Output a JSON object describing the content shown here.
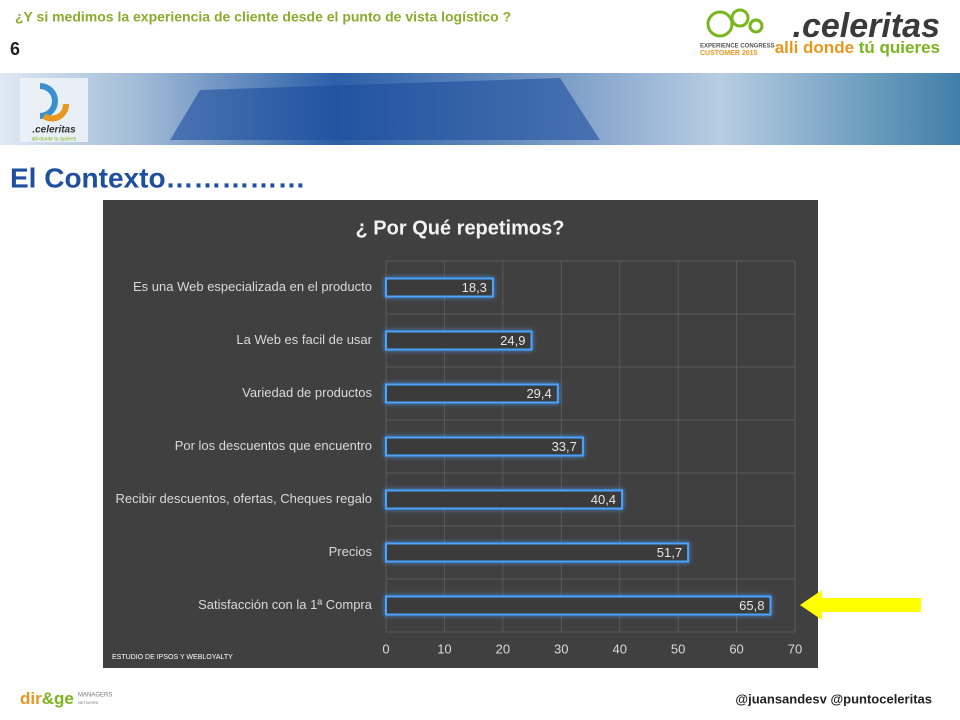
{
  "header": {
    "question": "¿Y si medimos la experiencia de cliente desde el punto de vista logístico ?",
    "slide_number": "6"
  },
  "logos": {
    "congress_top": "EXPERIENCE CONGRESS",
    "congress_bottom": "CUSTOMER 2015",
    "brand": ".celeritas",
    "tagline_a": "alli donde ",
    "tagline_b": "tú quieres",
    "banner_brand": ".celeritas",
    "banner_tagline": "alli donde tu quieres",
    "footer_brand_a": "dir",
    "footer_brand_b": "&ge",
    "footer_brand_c": "MANAGERS",
    "footer_brand_d": "NETWORK"
  },
  "section_title": "El Contexto……………",
  "footer": {
    "handles": "@juansandesv  @puntoceleritas"
  },
  "chart_data": {
    "type": "bar",
    "orientation": "horizontal",
    "title": "¿ Por Qué repetimos?",
    "source": "ESTUDIO DE IPSOS Y WEBLOYALTY",
    "categories": [
      "Es una Web especializada en el producto",
      "La Web es facil de usar",
      "Variedad de productos",
      "Por los descuentos que encuentro",
      "Recibir descuentos, ofertas, Cheques regalo",
      "Precios",
      "Satisfacción con la 1ª Compra"
    ],
    "values": [
      18.3,
      24.9,
      29.4,
      33.7,
      40.4,
      51.7,
      65.8
    ],
    "value_labels": [
      "18,3",
      "24,9",
      "29,4",
      "33,7",
      "40,4",
      "51,7",
      "65,8"
    ],
    "color": "#4aa3ff",
    "xlim": [
      0,
      70
    ],
    "xticks": [
      0,
      10,
      20,
      30,
      40,
      50,
      60,
      70
    ],
    "grid": true
  }
}
